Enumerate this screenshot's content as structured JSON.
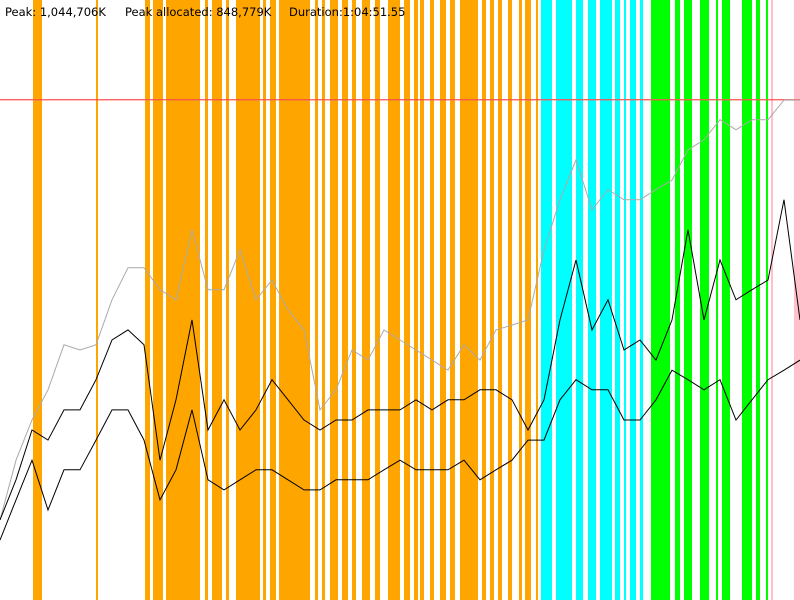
{
  "chart_data": {
    "type": "line",
    "header": [
      "Peak: 1,044,706K",
      "Peak allocated: 848,779K",
      "Duration:1:04:51.55"
    ],
    "xlim": [
      0,
      800
    ],
    "ylim": [
      0,
      1253000
    ],
    "peak": 1044706,
    "peak_color": "#ff5050",
    "x": [
      0,
      16,
      32,
      48,
      64,
      80,
      96,
      112,
      128,
      144,
      160,
      176,
      192,
      208,
      224,
      240,
      256,
      272,
      288,
      304,
      320,
      336,
      352,
      368,
      384,
      400,
      416,
      432,
      448,
      464,
      480,
      496,
      512,
      528,
      544,
      560,
      576,
      592,
      608,
      624,
      640,
      656,
      672,
      688,
      704,
      720,
      736,
      752,
      768,
      784,
      800
    ],
    "series": [
      {
        "color": "#aaaaaa",
        "values": [
          167000,
          292000,
          376000,
          439000,
          533000,
          522000,
          533000,
          627000,
          694000,
          694000,
          648000,
          627000,
          773000,
          648000,
          648000,
          731000,
          627000,
          668000,
          606000,
          564000,
          397000,
          439000,
          522000,
          501000,
          564000,
          543000,
          522000,
          501000,
          480000,
          533000,
          501000,
          564000,
          574000,
          585000,
          731000,
          836000,
          919000,
          815000,
          857000,
          836000,
          836000,
          857000,
          877000,
          940000,
          961000,
          1003000,
          982000,
          1003000,
          1003000,
          1044000,
          1044000
        ]
      },
      {
        "color": "#000000",
        "values": [
          167000,
          251000,
          355000,
          334000,
          397000,
          397000,
          460000,
          543000,
          564000,
          533000,
          292000,
          418000,
          585000,
          355000,
          418000,
          355000,
          397000,
          460000,
          418000,
          376000,
          355000,
          376000,
          376000,
          397000,
          397000,
          397000,
          418000,
          397000,
          418000,
          418000,
          439000,
          439000,
          418000,
          355000,
          418000,
          585000,
          710000,
          564000,
          627000,
          522000,
          543000,
          501000,
          585000,
          773000,
          585000,
          710000,
          627000,
          648000,
          668000,
          836000,
          585000
        ]
      },
      {
        "color": "#000000",
        "values": [
          125000,
          209000,
          292000,
          188000,
          272000,
          272000,
          334000,
          397000,
          397000,
          334000,
          209000,
          272000,
          397000,
          251000,
          230000,
          251000,
          272000,
          272000,
          251000,
          230000,
          230000,
          251000,
          251000,
          251000,
          272000,
          292000,
          272000,
          272000,
          272000,
          292000,
          251000,
          272000,
          292000,
          334000,
          334000,
          418000,
          460000,
          439000,
          439000,
          376000,
          376000,
          418000,
          480000,
          460000,
          439000,
          460000,
          376000,
          418000,
          460000,
          480000,
          501000
        ]
      }
    ],
    "bands": [
      {
        "color": "#ffa500",
        "ranges": [
          [
            33,
            42
          ],
          [
            96,
            98
          ],
          [
            145,
            150
          ],
          [
            153,
            163
          ],
          [
            166,
            200
          ],
          [
            205,
            208
          ],
          [
            212,
            222
          ],
          [
            226,
            229
          ],
          [
            236,
            260
          ],
          [
            263,
            266
          ],
          [
            270,
            276
          ],
          [
            279,
            310
          ],
          [
            315,
            318
          ],
          [
            322,
            325
          ],
          [
            330,
            338
          ],
          [
            342,
            348
          ],
          [
            352,
            356
          ],
          [
            362,
            370
          ],
          [
            375,
            380
          ],
          [
            388,
            400
          ],
          [
            404,
            410
          ],
          [
            414,
            418
          ],
          [
            420,
            424
          ],
          [
            430,
            434
          ],
          [
            440,
            446
          ],
          [
            450,
            455
          ],
          [
            460,
            478
          ],
          [
            482,
            486
          ],
          [
            490,
            494
          ],
          [
            498,
            502
          ],
          [
            508,
            512
          ],
          [
            519,
            522
          ],
          [
            525,
            531
          ],
          [
            536,
            538
          ]
        ]
      },
      {
        "color": "#00ffff",
        "ranges": [
          [
            541,
            552
          ],
          [
            556,
            572
          ],
          [
            576,
            583
          ],
          [
            588,
            596
          ],
          [
            600,
            612
          ],
          [
            615,
            620
          ],
          [
            624,
            626
          ],
          [
            630,
            636
          ],
          [
            640,
            643
          ]
        ]
      },
      {
        "color": "#00ff00",
        "ranges": [
          [
            651,
            670
          ],
          [
            675,
            680
          ],
          [
            684,
            692
          ],
          [
            700,
            709
          ],
          [
            716,
            718
          ],
          [
            722,
            730
          ],
          [
            742,
            752
          ],
          [
            756,
            760
          ],
          [
            766,
            768
          ]
        ]
      },
      {
        "color": "#ffc0cb",
        "ranges": [
          [
            771,
            773
          ],
          [
            794,
            800
          ]
        ]
      }
    ]
  }
}
